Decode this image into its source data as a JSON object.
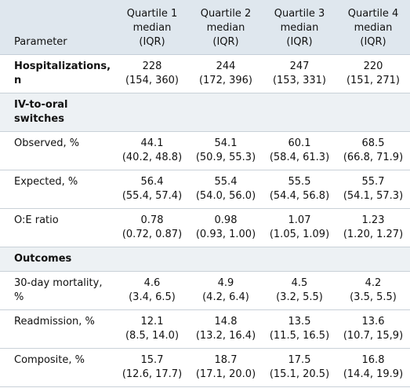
{
  "header": {
    "parameter": "Parameter",
    "columns": [
      [
        "Quartile 1",
        "median",
        "(IQR)"
      ],
      [
        "Quartile 2",
        "median",
        "(IQR)"
      ],
      [
        "Quartile 3",
        "median",
        "(IQR)"
      ],
      [
        "Quartile 4",
        "median",
        "(IQR)"
      ]
    ]
  },
  "hospitalizations": {
    "label": [
      "Hospitalizations,",
      "n"
    ],
    "values": [
      [
        "228",
        "(154, 360)"
      ],
      [
        "244",
        "(172, 396)"
      ],
      [
        "247",
        "(153, 331)"
      ],
      [
        "220",
        "(151, 271)"
      ]
    ]
  },
  "section_switches": [
    "IV-to-oral",
    "switches"
  ],
  "switch_rows": [
    {
      "label": [
        "Observed, %"
      ],
      "values": [
        [
          "44.1",
          "(40.2, 48.8)"
        ],
        [
          "54.1",
          "(50.9, 55.3)"
        ],
        [
          "60.1",
          "(58.4, 61.3)"
        ],
        [
          "68.5",
          "(66.8, 71.9)"
        ]
      ]
    },
    {
      "label": [
        "Expected, %"
      ],
      "values": [
        [
          "56.4",
          "(55.4, 57.4)"
        ],
        [
          "55.4",
          "(54.0, 56.0)"
        ],
        [
          "55.5",
          "(54.4, 56.8)"
        ],
        [
          "55.7",
          "(54.1, 57.3)"
        ]
      ]
    },
    {
      "label": [
        "O:E ratio"
      ],
      "values": [
        [
          "0.78",
          "(0.72, 0.87)"
        ],
        [
          "0.98",
          "(0.93, 1.00)"
        ],
        [
          "1.07",
          "(1.05, 1.09)"
        ],
        [
          "1.23",
          "(1.20, 1.27)"
        ]
      ]
    }
  ],
  "section_outcomes": "Outcomes",
  "outcome_rows": [
    {
      "label": [
        "30-day mortality,",
        "%"
      ],
      "values": [
        [
          "4.6",
          "(3.4, 6.5)"
        ],
        [
          "4.9",
          "(4.2, 6.4)"
        ],
        [
          "4.5",
          "(3.2, 5.5)"
        ],
        [
          "4.2",
          "(3.5, 5.5)"
        ]
      ]
    },
    {
      "label": [
        "Readmission, %"
      ],
      "values": [
        [
          "12.1",
          "(8.5, 14.0)"
        ],
        [
          "14.8",
          "(13.2, 16.4)"
        ],
        [
          "13.5",
          "(11.5, 16.5)"
        ],
        [
          "13.6",
          "(10.7, 15,9)"
        ]
      ]
    },
    {
      "label": [
        "Composite, %"
      ],
      "values": [
        [
          "15.7",
          "(12.6, 17.7)"
        ],
        [
          "18.7",
          "(17.1, 20.0)"
        ],
        [
          "17.5",
          "(15.1, 20.5)"
        ],
        [
          "16.8",
          "(14.4, 19.9)"
        ]
      ]
    }
  ]
}
